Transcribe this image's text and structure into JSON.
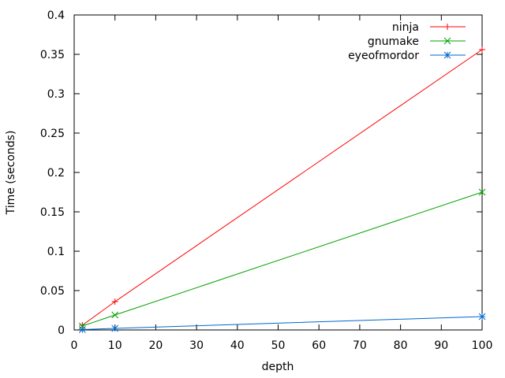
{
  "chart_data": {
    "type": "line",
    "title": "",
    "xlabel": "depth",
    "ylabel": "Time (seconds)",
    "xlim": [
      0,
      100
    ],
    "ylim": [
      0,
      0.4
    ],
    "xticks": [
      0,
      10,
      20,
      30,
      40,
      50,
      60,
      70,
      80,
      90,
      100
    ],
    "yticks": [
      0,
      0.05,
      0.1,
      0.15,
      0.2,
      0.25,
      0.3,
      0.35,
      0.4
    ],
    "grid": false,
    "legend_position": "top-right",
    "series": [
      {
        "name": "ninja",
        "color": "#ff0000",
        "marker": "plus",
        "x": [
          2,
          10,
          100
        ],
        "y": [
          0.006,
          0.036,
          0.356
        ]
      },
      {
        "name": "gnumake",
        "color": "#00a000",
        "marker": "cross",
        "x": [
          2,
          10,
          100
        ],
        "y": [
          0.005,
          0.019,
          0.175
        ]
      },
      {
        "name": "eyeofmordor",
        "color": "#0066cc",
        "marker": "asterisk",
        "x": [
          2,
          10,
          100
        ],
        "y": [
          0.0005,
          0.002,
          0.017
        ]
      }
    ]
  }
}
